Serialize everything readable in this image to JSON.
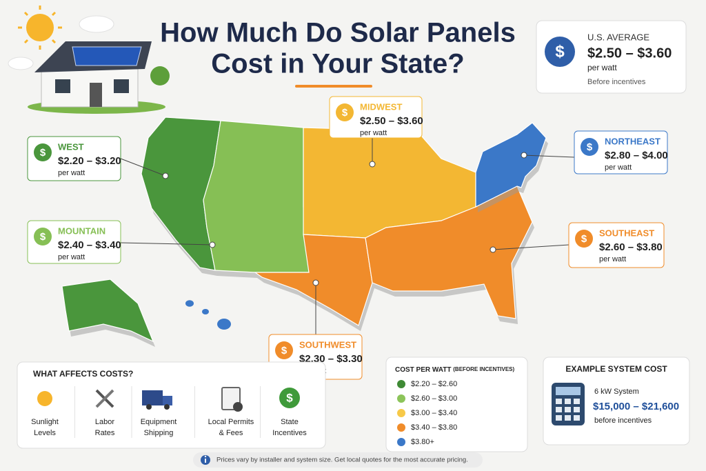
{
  "title_lines": [
    "How Much Do Solar Panels",
    "Cost in Your State?"
  ],
  "currency_symbol": "$",
  "us_average": {
    "label": "U.S. AVERAGE",
    "range": "$2.50 – $3.60",
    "unit": "per watt",
    "note": "Before incentives",
    "color": "#2f5ea8"
  },
  "regions": [
    {
      "name": "WEST",
      "range": "$2.20 – $3.20",
      "unit": "per watt",
      "color": "#4a963c"
    },
    {
      "name": "MIDWEST",
      "range": "$2.50 – $3.60",
      "unit": "per watt",
      "color": "#f3b733"
    },
    {
      "name": "NORTHEAST",
      "range": "$2.80 – $4.00",
      "unit": "per watt",
      "color": "#3b78c8"
    },
    {
      "name": "MOUNTAIN",
      "range": "$2.40 – $3.40",
      "unit": "per watt",
      "color": "#86bf55"
    },
    {
      "name": "SOUTHEAST",
      "range": "$2.60 – $3.80",
      "unit": "per watt",
      "color": "#f08c2a"
    },
    {
      "name": "SOUTHWEST",
      "range": "$2.30 – $3.30",
      "unit": "per watt",
      "color": "#f08c2a"
    }
  ],
  "factors": {
    "title": "WHAT AFFECTS COSTS?",
    "items": [
      {
        "label_lines": [
          "Sunlight",
          "Levels"
        ]
      },
      {
        "label_lines": [
          "Labor",
          "Rates"
        ]
      },
      {
        "label_lines": [
          "Equipment",
          "Shipping"
        ]
      },
      {
        "label_lines": [
          "Local Permits",
          "& Fees"
        ]
      },
      {
        "label_lines": [
          "State",
          "Incentives"
        ]
      }
    ]
  },
  "legend": {
    "title": "COST PER WATT",
    "subtitle": "(BEFORE INCENTIVES)",
    "items": [
      {
        "label": "$2.20 – $2.60",
        "color": "#3f8a35"
      },
      {
        "label": "$2.60 – $3.00",
        "color": "#8cc45a"
      },
      {
        "label": "$3.00 – $3.40",
        "color": "#f7c948"
      },
      {
        "label": "$3.40 – $3.80",
        "color": "#f08c2a"
      },
      {
        "label": "$3.80+",
        "color": "#3b78c8"
      }
    ]
  },
  "example": {
    "title": "EXAMPLE SYSTEM COST",
    "system": "6 kW System",
    "range": "$15,000 – $21,600",
    "note": "before incentives"
  },
  "footer": "Prices vary by installer and system size. Get local quotes for the most accurate pricing."
}
